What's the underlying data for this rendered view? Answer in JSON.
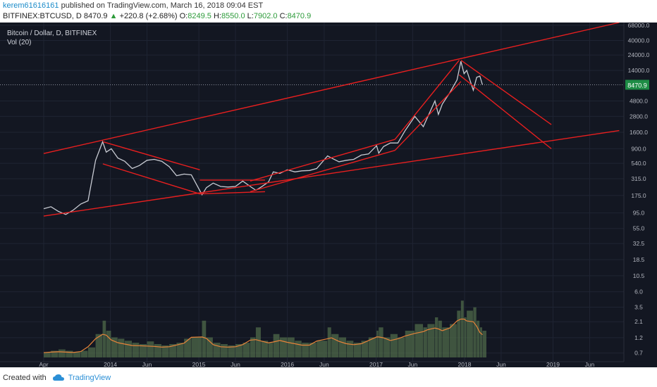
{
  "header": {
    "username": "kerem61616161",
    "published_text": "published on TradingView.com, March 16, 2018 09:04 EST",
    "symbol_line": "BITFINEX:BTCUSD, D",
    "last": "8470.9",
    "change_arrow": "▲",
    "change": "+220.8 (+2.68%)",
    "open_label": "O:",
    "open": "8249.5",
    "high_label": "H:",
    "high": "8550.0",
    "low_label": "L:",
    "low": "7902.0",
    "close_label": "C:",
    "close": "8470.9"
  },
  "overlay": {
    "instrument": "Bitcoin / Dollar, D, BITFINEX",
    "indicator": "Vol (20)"
  },
  "footer": {
    "created_with": "Created with",
    "brand": "TradingView"
  },
  "colors": {
    "background": "#131722",
    "grid": "#1f2433",
    "axis_text": "#b2b5be",
    "trendline": "#e81f1f",
    "price_line": "#c8cbd3",
    "price_label_bg": "#1e8c45",
    "volume_fill": "#4f6a4a",
    "volume_ma": "#e8843a",
    "username": "#1a8bc9",
    "up_green": "#2d9b3a"
  },
  "chart_data": {
    "type": "line",
    "title": "Bitcoin / Dollar, D, BITFINEX",
    "xlabel": "",
    "ylabel": "",
    "scale": "log",
    "grid": true,
    "x_ticks": [
      {
        "label": "Apr",
        "date": "2013-04-01"
      },
      {
        "label": "2014",
        "date": "2014-01-01"
      },
      {
        "label": "Jun",
        "date": "2014-06-01"
      },
      {
        "label": "2015",
        "date": "2015-01-01"
      },
      {
        "label": "Jun",
        "date": "2015-06-01"
      },
      {
        "label": "2016",
        "date": "2016-01-01"
      },
      {
        "label": "Jun",
        "date": "2016-06-01"
      },
      {
        "label": "2017",
        "date": "2017-01-01"
      },
      {
        "label": "Jun",
        "date": "2017-06-01"
      },
      {
        "label": "2018",
        "date": "2018-01-01"
      },
      {
        "label": "Jun",
        "date": "2018-06-01"
      },
      {
        "label": "2019",
        "date": "2019-01-01"
      },
      {
        "label": "Jun",
        "date": "2019-06-01"
      }
    ],
    "y_ticks": [
      "68000.0",
      "40000.0",
      "24000.0",
      "14000.0",
      "4800.0",
      "2800.0",
      "1600.0",
      "900.0",
      "540.0",
      "315.0",
      "175.0",
      "95.0",
      "55.0",
      "32.5",
      "18.5",
      "10.5",
      "6.0",
      "3.5",
      "2.1",
      "1.2",
      "0.7"
    ],
    "last_price_label": "8470.9",
    "ylim": [
      0.6,
      75000
    ],
    "x": [
      "2013-04-01",
      "2013-05-01",
      "2013-06-01",
      "2013-07-01",
      "2013-08-01",
      "2013-09-01",
      "2013-10-01",
      "2013-11-01",
      "2013-11-30",
      "2013-12-15",
      "2014-01-05",
      "2014-02-01",
      "2014-03-01",
      "2014-04-01",
      "2014-05-01",
      "2014-06-01",
      "2014-07-01",
      "2014-08-01",
      "2014-09-01",
      "2014-10-01",
      "2014-11-01",
      "2014-12-01",
      "2015-01-14",
      "2015-02-01",
      "2015-03-01",
      "2015-04-01",
      "2015-05-01",
      "2015-06-01",
      "2015-07-01",
      "2015-08-01",
      "2015-08-24",
      "2015-09-15",
      "2015-10-15",
      "2015-11-04",
      "2015-12-01",
      "2016-01-01",
      "2016-02-01",
      "2016-03-01",
      "2016-04-01",
      "2016-05-01",
      "2016-06-15",
      "2016-07-01",
      "2016-08-01",
      "2016-09-01",
      "2016-10-01",
      "2016-11-01",
      "2016-12-01",
      "2017-01-03",
      "2017-01-12",
      "2017-02-01",
      "2017-03-01",
      "2017-04-01",
      "2017-05-01",
      "2017-06-10",
      "2017-07-15",
      "2017-08-01",
      "2017-09-01",
      "2017-09-15",
      "2017-10-01",
      "2017-11-01",
      "2017-12-01",
      "2017-12-17",
      "2017-12-30",
      "2018-01-10",
      "2018-02-06",
      "2018-02-20",
      "2018-03-05",
      "2018-03-16"
    ],
    "series": [
      {
        "values": [
          110,
          118,
          100,
          90,
          105,
          130,
          145,
          600,
          1150,
          800,
          900,
          650,
          580,
          450,
          500,
          600,
          620,
          580,
          480,
          350,
          370,
          360,
          180,
          230,
          270,
          240,
          235,
          240,
          290,
          240,
          210,
          235,
          280,
          400,
          380,
          430,
          400,
          415,
          420,
          450,
          700,
          650,
          570,
          600,
          620,
          720,
          750,
          1000,
          770,
          970,
          1100,
          1100,
          1700,
          2800,
          1950,
          2700,
          4800,
          3000,
          4300,
          6400,
          10000,
          19300,
          12500,
          14000,
          7000,
          11000,
          11500,
          8470
        ]
      }
    ],
    "annotations": [
      {
        "type": "trendline",
        "from": {
          "date": "2013-04-01",
          "price": 85
        },
        "to": {
          "date": "2019-10-01",
          "price": 1700
        }
      },
      {
        "type": "trendline",
        "from": {
          "date": "2013-04-01",
          "price": 760
        },
        "to": {
          "date": "2019-10-01",
          "price": 75000
        }
      },
      {
        "type": "trendline",
        "from": {
          "date": "2013-12-01",
          "price": 1150
        },
        "to": {
          "date": "2015-01-05",
          "price": 430
        }
      },
      {
        "type": "trendline",
        "from": {
          "date": "2013-12-01",
          "price": 530
        },
        "to": {
          "date": "2015-01-05",
          "price": 185
        }
      },
      {
        "type": "trendline",
        "from": {
          "date": "2015-01-05",
          "price": 300
        },
        "to": {
          "date": "2015-10-01",
          "price": 300
        }
      },
      {
        "type": "trendline",
        "from": {
          "date": "2015-01-05",
          "price": 185
        },
        "to": {
          "date": "2015-10-01",
          "price": 200
        }
      },
      {
        "type": "trendline",
        "from": {
          "date": "2015-08-01",
          "price": 200
        },
        "to": {
          "date": "2017-03-20",
          "price": 850
        }
      },
      {
        "type": "trendline",
        "from": {
          "date": "2015-08-01",
          "price": 290
        },
        "to": {
          "date": "2017-03-20",
          "price": 1250
        }
      },
      {
        "type": "trendline",
        "from": {
          "date": "2017-03-20",
          "price": 850
        },
        "to": {
          "date": "2017-12-17",
          "price": 9500
        }
      },
      {
        "type": "trendline",
        "from": {
          "date": "2017-03-20",
          "price": 1250
        },
        "to": {
          "date": "2017-12-10",
          "price": 20000
        }
      },
      {
        "type": "trendline",
        "from": {
          "date": "2017-12-10",
          "price": 12000
        },
        "to": {
          "date": "2018-12-25",
          "price": 900
        }
      },
      {
        "type": "trendline",
        "from": {
          "date": "2017-12-17",
          "price": 20000
        },
        "to": {
          "date": "2018-12-25",
          "price": 2100
        }
      }
    ],
    "volume": {
      "name": "Vol (20)",
      "relative": [
        0.08,
        0.1,
        0.12,
        0.1,
        0.08,
        0.1,
        0.15,
        0.35,
        0.55,
        0.4,
        0.3,
        0.28,
        0.25,
        0.22,
        0.2,
        0.24,
        0.2,
        0.18,
        0.2,
        0.22,
        0.28,
        0.3,
        0.55,
        0.3,
        0.22,
        0.2,
        0.18,
        0.2,
        0.22,
        0.3,
        0.45,
        0.25,
        0.22,
        0.35,
        0.3,
        0.3,
        0.25,
        0.22,
        0.22,
        0.25,
        0.45,
        0.35,
        0.3,
        0.25,
        0.22,
        0.25,
        0.3,
        0.4,
        0.45,
        0.3,
        0.35,
        0.3,
        0.4,
        0.5,
        0.45,
        0.5,
        0.6,
        0.55,
        0.45,
        0.5,
        0.7,
        0.85,
        0.6,
        0.7,
        0.75,
        0.55,
        0.45,
        0.4
      ]
    }
  }
}
